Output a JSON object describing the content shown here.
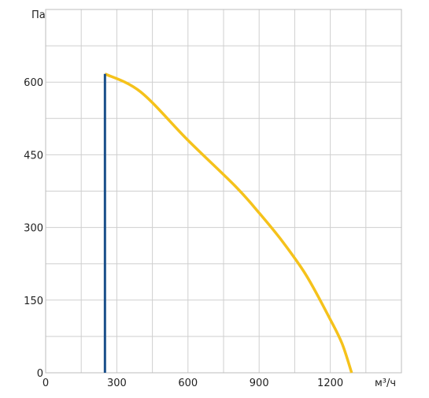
{
  "chart_data": {
    "type": "line",
    "ylabel": "Па",
    "xlabel": "м³/ч",
    "xlim": [
      0,
      1500
    ],
    "ylim": [
      0,
      750
    ],
    "x_ticks": [
      0,
      300,
      600,
      900,
      1200
    ],
    "y_ticks": [
      0,
      150,
      300,
      450,
      600
    ],
    "grid": true,
    "series": [
      {
        "color": "#f5c21b",
        "x": [
          250,
          400,
          600,
          800,
          900,
          1000,
          1100,
          1200,
          1250,
          1290
        ],
        "y": [
          617,
          580,
          480,
          385,
          330,
          270,
          200,
          110,
          60,
          0
        ]
      },
      {
        "color": "#1a4f8a",
        "x": [
          250,
          250
        ],
        "y": [
          0,
          617
        ]
      }
    ]
  }
}
